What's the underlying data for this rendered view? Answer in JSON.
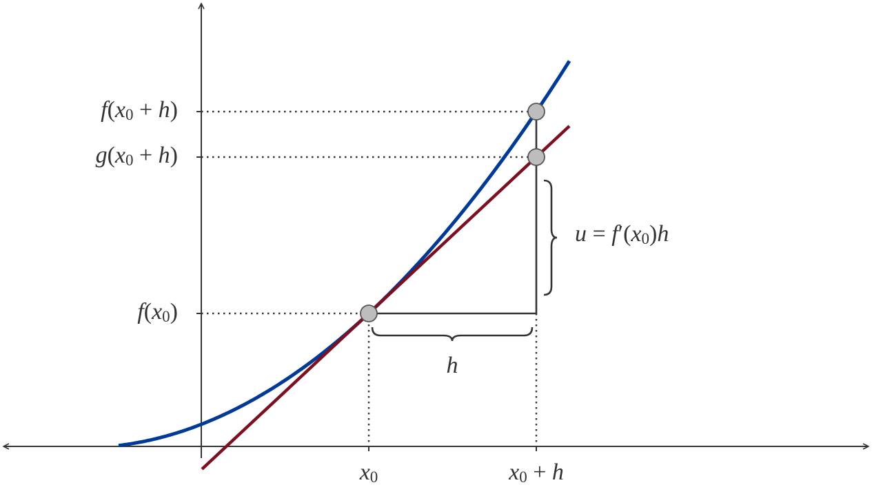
{
  "y_labels": [
    {
      "parts": [
        {
          "text": "f",
          "style": "italic"
        },
        {
          "text": "(",
          "style": "roman"
        },
        {
          "text": "x",
          "style": "italic"
        },
        {
          "text": "0",
          "style": "sub"
        },
        {
          "text": " + ",
          "style": "roman"
        },
        {
          "text": "h",
          "style": "italic"
        },
        {
          "text": ")",
          "style": "roman"
        }
      ]
    },
    {
      "parts": [
        {
          "text": "g",
          "style": "italic"
        },
        {
          "text": "(",
          "style": "roman"
        },
        {
          "text": "x",
          "style": "italic"
        },
        {
          "text": "0",
          "style": "sub"
        },
        {
          "text": " + ",
          "style": "roman"
        },
        {
          "text": "h",
          "style": "italic"
        },
        {
          "text": ")",
          "style": "roman"
        }
      ]
    },
    {
      "parts": [
        {
          "text": "f",
          "style": "italic"
        },
        {
          "text": "(",
          "style": "roman"
        },
        {
          "text": "x",
          "style": "italic"
        },
        {
          "text": "0",
          "style": "sub"
        },
        {
          "text": ")",
          "style": "roman"
        }
      ]
    }
  ],
  "x_labels": [
    {
      "parts": [
        {
          "text": "x",
          "style": "italic"
        },
        {
          "text": "0",
          "style": "sub"
        }
      ]
    },
    {
      "parts": [
        {
          "text": "x",
          "style": "italic"
        },
        {
          "text": "0",
          "style": "sub"
        },
        {
          "text": " + ",
          "style": "roman"
        },
        {
          "text": "h",
          "style": "italic"
        }
      ]
    }
  ],
  "brace_labels": [
    {
      "parts": [
        {
          "text": "h",
          "style": "italic"
        }
      ]
    },
    {
      "parts": [
        {
          "text": "u",
          "style": "italic"
        },
        {
          "text": " = ",
          "style": "roman"
        },
        {
          "text": "f",
          "style": "italic"
        },
        {
          "text": "′",
          "style": "roman"
        },
        {
          "text": "(",
          "style": "roman"
        },
        {
          "text": "x",
          "style": "italic"
        },
        {
          "text": "0",
          "style": "sub"
        },
        {
          "text": ")",
          "style": "roman"
        },
        {
          "text": "h",
          "style": "italic"
        }
      ]
    }
  ]
}
